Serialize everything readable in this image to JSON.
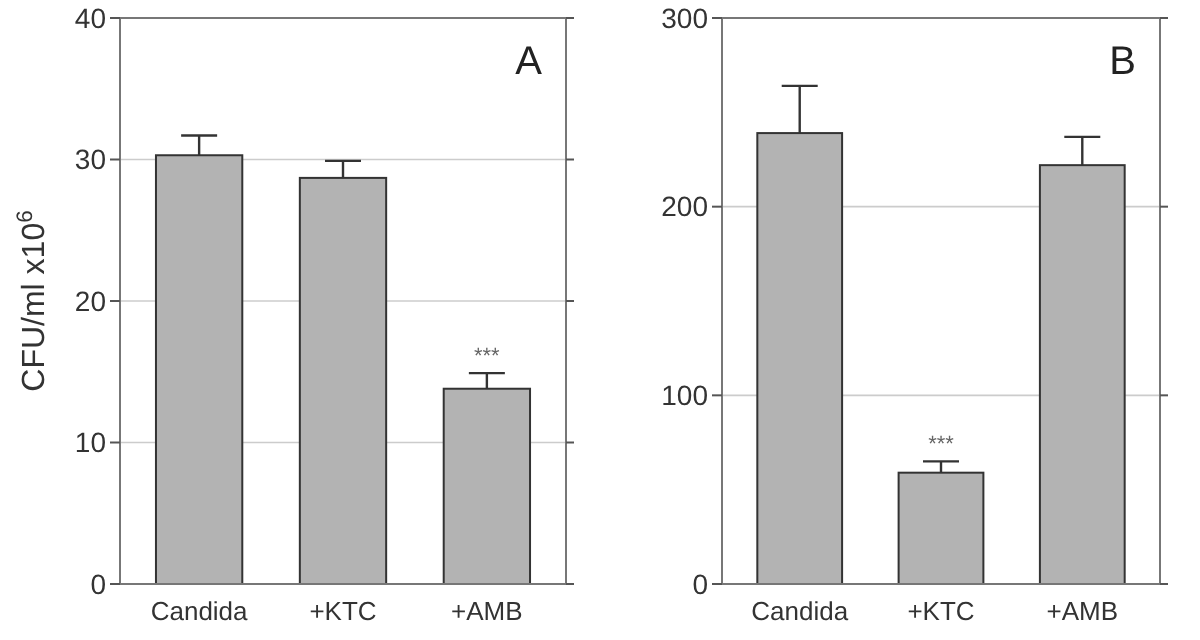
{
  "chart_data": [
    {
      "type": "bar",
      "ylabel": "CFU/ml x10$^{6}$",
      "categories": [
        "Candida",
        "+KTC",
        "+AMB"
      ],
      "values": [
        30.3,
        28.7,
        13.8
      ],
      "errors": [
        1.4,
        1.2,
        1.1
      ],
      "color": "#b3b3b3",
      "ylim": [
        0,
        40
      ],
      "yticks": [
        0,
        10,
        20,
        30,
        40
      ],
      "grid": "y",
      "annotations": [
        "A",
        {
          "text": "***",
          "x": "+AMB",
          "y": 14.9
        }
      ]
    },
    {
      "type": "bar",
      "categories": [
        "Candida",
        "+KTC",
        "+AMB"
      ],
      "values": [
        239,
        59,
        222
      ],
      "errors": [
        25,
        6,
        15
      ],
      "color": "#b3b3b3",
      "ylim": [
        0,
        300
      ],
      "yticks": [
        0,
        100,
        200,
        300
      ],
      "grid": "y",
      "annotations": [
        "B",
        {
          "text": "***",
          "x": "+KTC",
          "y": 65
        }
      ]
    }
  ]
}
